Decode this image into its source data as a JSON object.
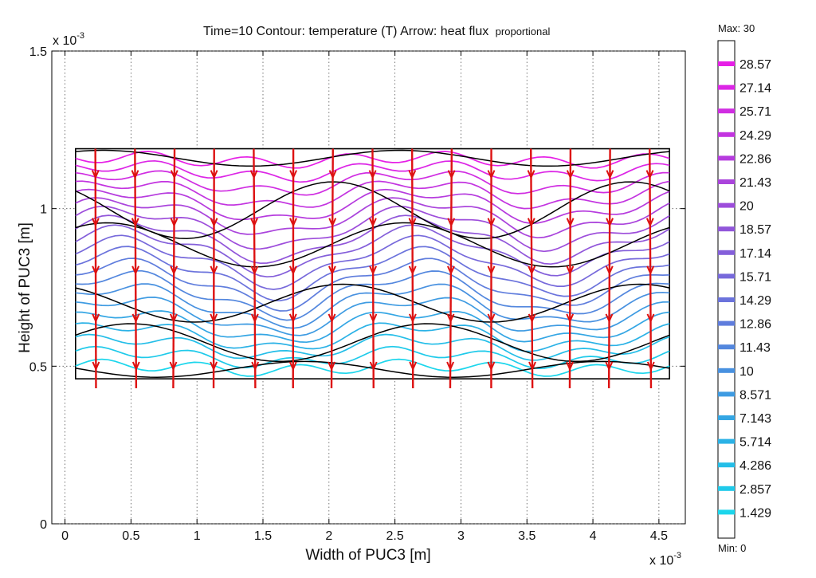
{
  "chart_data": {
    "type": "contour",
    "title": {
      "main": "Time=10  Contour: temperature (T)  Arrow:  heat flux",
      "suffix": "proportional"
    },
    "xlabel": "Width of PUC3 [m]",
    "ylabel": "Height of PUC3 [m]",
    "x_exponent": "x 10",
    "x_exponent_power": "-3",
    "y_exponent": "x 10",
    "y_exponent_power": "-3",
    "xlim": [
      -0.1,
      4.7
    ],
    "ylim": [
      0,
      1.5
    ],
    "xticks": [
      0,
      0.5,
      1,
      1.5,
      2,
      2.5,
      3,
      3.5,
      4,
      4.5
    ],
    "xtick_labels": [
      "0",
      "0.5",
      "1",
      "1.5",
      "2",
      "2.5",
      "3",
      "3.5",
      "4",
      "4.5"
    ],
    "yticks": [
      0,
      0.5,
      1,
      1.5
    ],
    "ytick_labels": [
      "0",
      "0.5",
      "1",
      "1.5"
    ],
    "grid": true,
    "domain_box": {
      "x": [
        0.08,
        4.58
      ],
      "y": [
        0.46,
        1.19
      ]
    },
    "contour_levels": [
      1.429,
      2.857,
      4.286,
      5.714,
      7.143,
      8.571,
      10,
      11.43,
      12.86,
      14.29,
      15.71,
      17.14,
      18.57,
      20,
      21.43,
      22.86,
      24.29,
      25.71,
      27.14,
      28.57
    ],
    "colorbar": {
      "max_label": "Max: 30",
      "min_label": "Min: 0",
      "entries": [
        {
          "label": "28.57",
          "color": "#e61fe6"
        },
        {
          "label": "27.14",
          "color": "#dc26e6"
        },
        {
          "label": "25.71",
          "color": "#d02de2"
        },
        {
          "label": "24.29",
          "color": "#c334e0"
        },
        {
          "label": "22.86",
          "color": "#b63bde"
        },
        {
          "label": "21.43",
          "color": "#aa44dc"
        },
        {
          "label": "20",
          "color": "#9d4ddb"
        },
        {
          "label": "18.57",
          "color": "#9156da"
        },
        {
          "label": "17.14",
          "color": "#845fda"
        },
        {
          "label": "15.71",
          "color": "#7769db"
        },
        {
          "label": "14.29",
          "color": "#6b73dc"
        },
        {
          "label": "12.86",
          "color": "#5f7ddd"
        },
        {
          "label": "11.43",
          "color": "#5387de"
        },
        {
          "label": "10",
          "color": "#4891e0"
        },
        {
          "label": "8.571",
          "color": "#3e9be2"
        },
        {
          "label": "7.143",
          "color": "#34a6e4"
        },
        {
          "label": "5.714",
          "color": "#2bb2e6"
        },
        {
          "label": "4.286",
          "color": "#24bee8"
        },
        {
          "label": "2.857",
          "color": "#1fcaea"
        },
        {
          "label": "1.429",
          "color": "#1cd6ec"
        }
      ]
    },
    "arrow_color": "#dd1111",
    "arrow_columns_x": [
      0.23,
      0.53,
      0.83,
      1.13,
      1.43,
      1.73,
      2.03,
      2.33,
      2.63,
      2.93,
      3.23,
      3.53,
      3.83,
      4.13,
      4.43
    ]
  }
}
